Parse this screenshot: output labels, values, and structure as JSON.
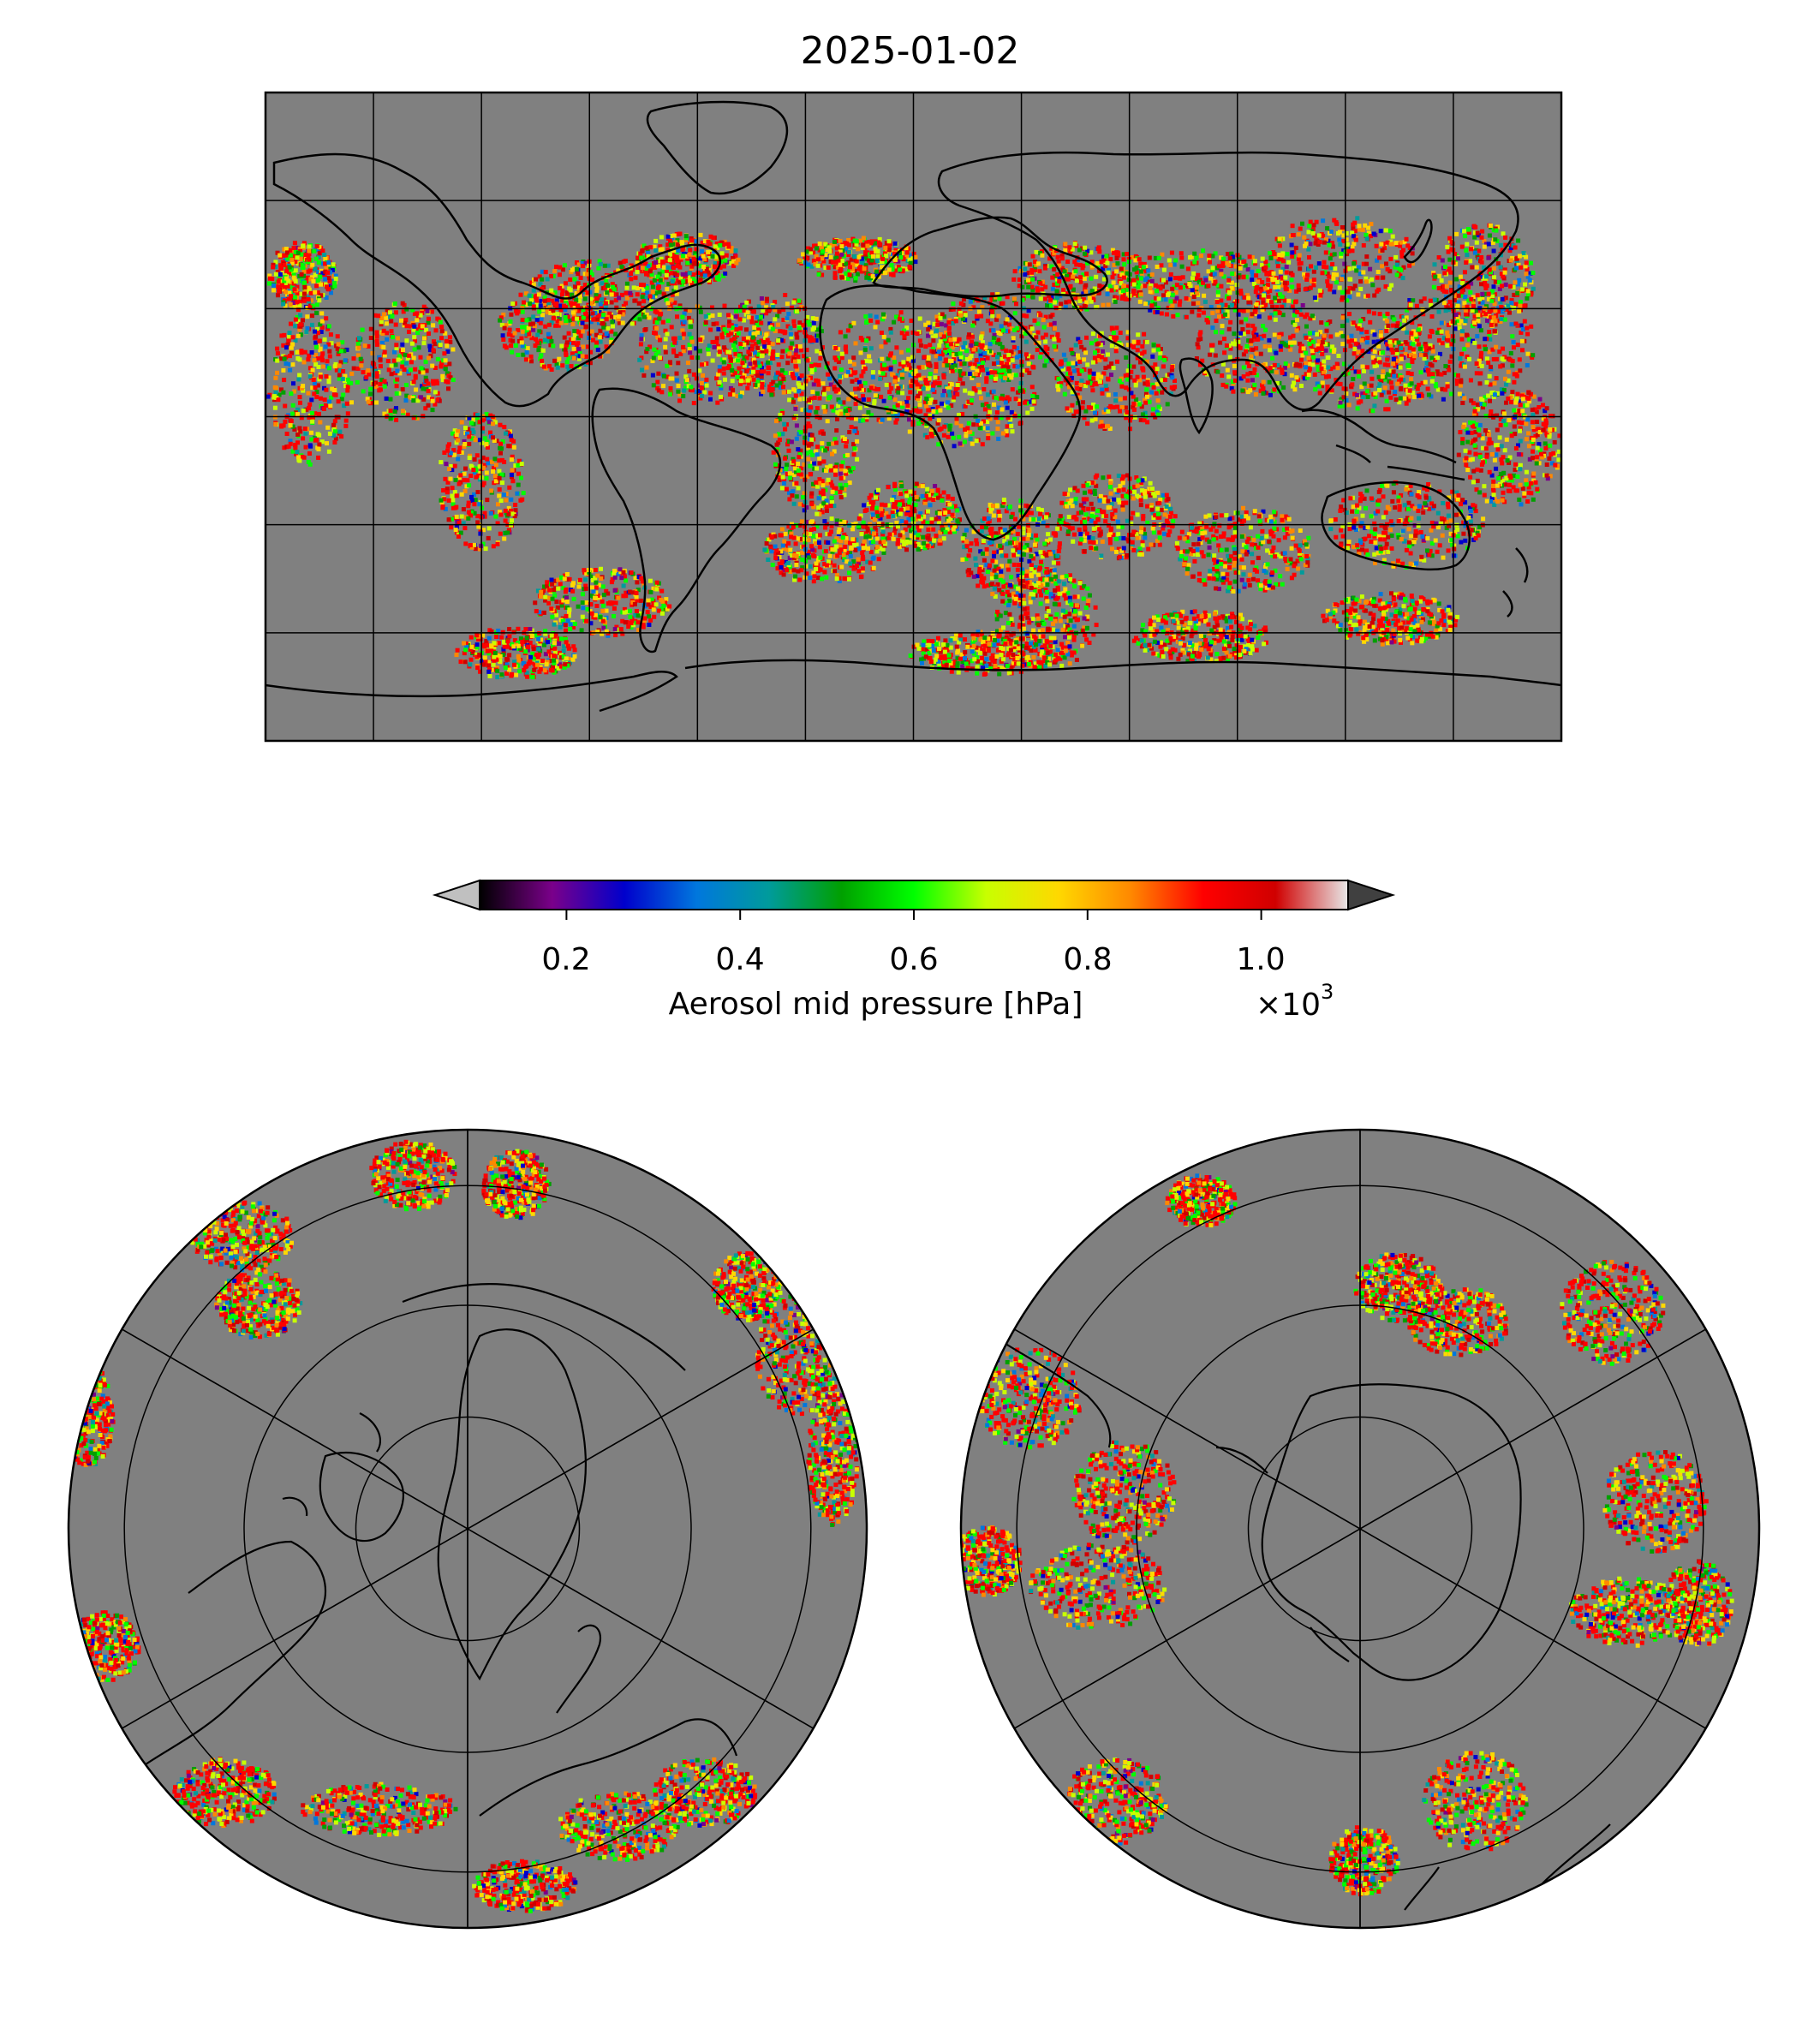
{
  "figure": {
    "title": "2025-01-02"
  },
  "colorbar": {
    "label": "Aerosol mid pressure [hPa]",
    "multiplier_base": "×10",
    "multiplier_exp": "3",
    "ticks": [
      "0.2",
      "0.4",
      "0.6",
      "0.8",
      "1.0"
    ],
    "tick_values": [
      0.2,
      0.4,
      0.6,
      0.8,
      1.0
    ],
    "range": [
      0.1,
      1.1
    ],
    "extend": "both",
    "under_color": "#c0c0c0",
    "over_color": "#404040",
    "colormap": [
      "#000000",
      "#7a008a",
      "#0000cc",
      "#0077dd",
      "#009b9b",
      "#00a000",
      "#00ff00",
      "#c8ff00",
      "#ffd800",
      "#ff8800",
      "#ff0000",
      "#d00000",
      "#e8e8e8"
    ]
  },
  "maps": {
    "background_color": "#808080",
    "panels": [
      "global-plate-carree",
      "north-polar-stereographic",
      "south-polar-stereographic"
    ]
  },
  "chart_data": {
    "type": "heatmap",
    "title": "2025-01-02",
    "variable": "Aerosol mid pressure [hPa]",
    "scale_factor": "×10^3",
    "value_range": [
      0.1,
      1.1
    ],
    "grid": true,
    "legend_placement": "center"
  }
}
